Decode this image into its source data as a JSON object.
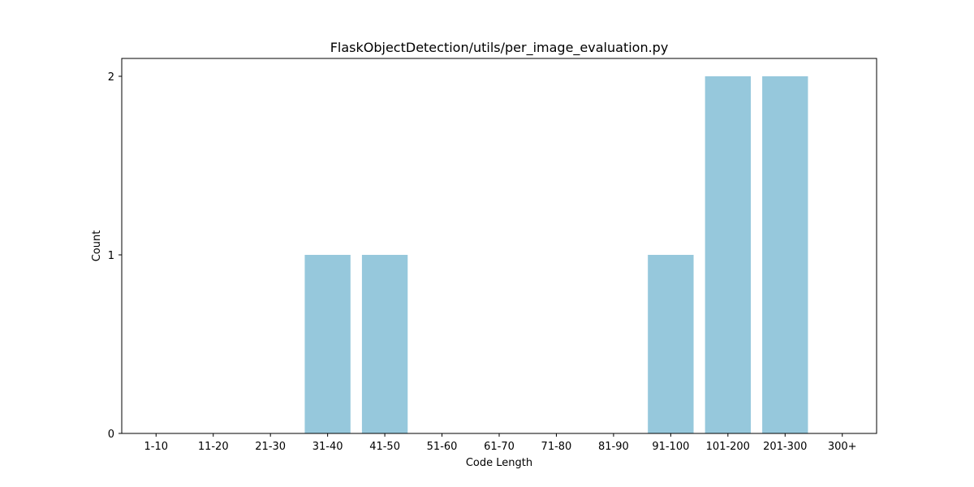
{
  "chart_data": {
    "type": "bar",
    "title": "FlaskObjectDetection/utils/per_image_evaluation.py",
    "xlabel": "Code Length",
    "ylabel": "Count",
    "categories": [
      "1-10",
      "11-20",
      "21-30",
      "31-40",
      "41-50",
      "51-60",
      "61-70",
      "71-80",
      "81-90",
      "91-100",
      "101-200",
      "201-300",
      "300+"
    ],
    "values": [
      0,
      0,
      0,
      1,
      1,
      0,
      0,
      0,
      0,
      1,
      2,
      2,
      0
    ],
    "yticks": [
      0,
      1,
      2
    ],
    "ylim": [
      0,
      2.1
    ],
    "bar_color": "#96c8dc",
    "grid": false,
    "legend": "none"
  }
}
